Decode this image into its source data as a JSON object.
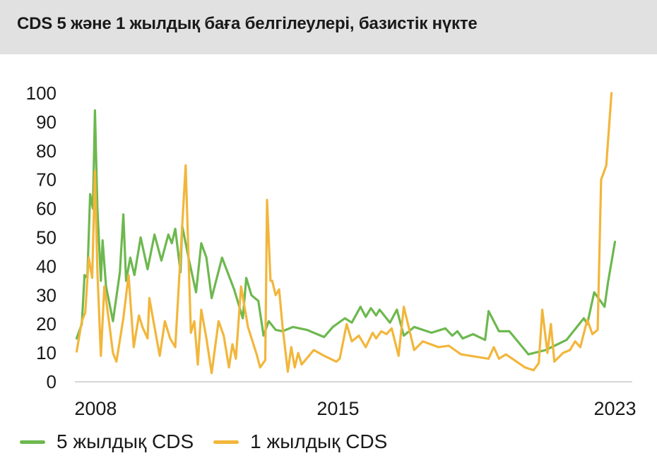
{
  "title": "CDS 5 және 1 жылдық баға белгілеулері, базистік нүкте",
  "colors": {
    "series_5y": "#6db84f",
    "series_1y": "#f2b63b",
    "header_bg": "#e1e1e1"
  },
  "legend": {
    "item_5y": "5 жылдық CDS",
    "item_1y": "1 жылдық CDS"
  },
  "chart_data": {
    "type": "line",
    "title": "CDS 5 және 1 жылдық баға белгілеулері, базистік нүкте",
    "xlabel": "",
    "ylabel": "",
    "ylim": [
      0,
      100
    ],
    "yticks": [
      0,
      10,
      20,
      30,
      40,
      50,
      60,
      70,
      80,
      90,
      100
    ],
    "xtick_labels": [
      {
        "label": "2008",
        "x": 2008
      },
      {
        "label": "2015",
        "x": 2015
      },
      {
        "label": "2023",
        "x": 2023
      }
    ],
    "xlim": [
      2007.4,
      2023.5
    ],
    "grid": false,
    "legend_position": "bottom",
    "series": [
      {
        "name": "5 жылдық CDS",
        "points": [
          [
            2007.45,
            15
          ],
          [
            2007.6,
            20
          ],
          [
            2007.68,
            37
          ],
          [
            2007.76,
            36
          ],
          [
            2007.84,
            65
          ],
          [
            2007.92,
            60
          ],
          [
            2007.98,
            94
          ],
          [
            2008.05,
            60
          ],
          [
            2008.15,
            35
          ],
          [
            2008.2,
            49
          ],
          [
            2008.3,
            33
          ],
          [
            2008.5,
            21
          ],
          [
            2008.7,
            38
          ],
          [
            2008.8,
            58
          ],
          [
            2008.88,
            35
          ],
          [
            2009.0,
            43
          ],
          [
            2009.12,
            37
          ],
          [
            2009.3,
            50
          ],
          [
            2009.5,
            39
          ],
          [
            2009.7,
            51
          ],
          [
            2009.9,
            42
          ],
          [
            2010.1,
            51
          ],
          [
            2010.2,
            48
          ],
          [
            2010.3,
            53
          ],
          [
            2010.45,
            38
          ],
          [
            2010.5,
            54
          ],
          [
            2010.7,
            42
          ],
          [
            2010.9,
            31
          ],
          [
            2011.05,
            48
          ],
          [
            2011.2,
            43
          ],
          [
            2011.35,
            29
          ],
          [
            2011.65,
            43
          ],
          [
            2012.0,
            32
          ],
          [
            2012.25,
            22
          ],
          [
            2012.35,
            36
          ],
          [
            2012.5,
            30
          ],
          [
            2012.7,
            28
          ],
          [
            2012.85,
            16
          ],
          [
            2013.0,
            21
          ],
          [
            2013.2,
            18
          ],
          [
            2013.4,
            17.5
          ],
          [
            2013.7,
            19
          ],
          [
            2014.1,
            18
          ],
          [
            2014.6,
            15.5
          ],
          [
            2014.85,
            19
          ],
          [
            2015.2,
            22
          ],
          [
            2015.4,
            20.5
          ],
          [
            2015.65,
            26
          ],
          [
            2015.8,
            22.5
          ],
          [
            2015.95,
            25.5
          ],
          [
            2016.1,
            23
          ],
          [
            2016.2,
            25
          ],
          [
            2016.5,
            20.5
          ],
          [
            2016.7,
            25
          ],
          [
            2016.9,
            16
          ],
          [
            2017.2,
            19
          ],
          [
            2017.7,
            17
          ],
          [
            2018.1,
            18.5
          ],
          [
            2018.3,
            16
          ],
          [
            2018.45,
            17.5
          ],
          [
            2018.6,
            15
          ],
          [
            2018.9,
            16.5
          ],
          [
            2019.25,
            14.5
          ],
          [
            2019.35,
            24.5
          ],
          [
            2019.65,
            17.5
          ],
          [
            2019.95,
            17.5
          ],
          [
            2020.5,
            9.5
          ],
          [
            2021.0,
            11
          ],
          [
            2021.6,
            14.5
          ],
          [
            2022.1,
            22
          ],
          [
            2022.2,
            20
          ],
          [
            2022.4,
            31
          ],
          [
            2022.7,
            26
          ],
          [
            2022.8,
            34.5
          ],
          [
            2023.0,
            48.5
          ]
        ]
      },
      {
        "name": "1 жылдық CDS",
        "points": [
          [
            2007.45,
            10.5
          ],
          [
            2007.6,
            21
          ],
          [
            2007.7,
            24
          ],
          [
            2007.8,
            43
          ],
          [
            2007.9,
            36
          ],
          [
            2007.98,
            73
          ],
          [
            2008.05,
            38
          ],
          [
            2008.15,
            9
          ],
          [
            2008.25,
            33
          ],
          [
            2008.35,
            24
          ],
          [
            2008.5,
            10
          ],
          [
            2008.6,
            7
          ],
          [
            2008.8,
            22
          ],
          [
            2008.95,
            37
          ],
          [
            2009.1,
            12
          ],
          [
            2009.25,
            23
          ],
          [
            2009.35,
            19
          ],
          [
            2009.5,
            15
          ],
          [
            2009.55,
            29
          ],
          [
            2009.7,
            19
          ],
          [
            2009.85,
            9
          ],
          [
            2010.0,
            21
          ],
          [
            2010.15,
            15
          ],
          [
            2010.3,
            12
          ],
          [
            2010.6,
            75
          ],
          [
            2010.75,
            17
          ],
          [
            2010.85,
            21
          ],
          [
            2010.95,
            6
          ],
          [
            2011.05,
            25
          ],
          [
            2011.2,
            15
          ],
          [
            2011.35,
            3
          ],
          [
            2011.55,
            21
          ],
          [
            2011.7,
            16
          ],
          [
            2011.85,
            5
          ],
          [
            2011.95,
            13
          ],
          [
            2012.05,
            8
          ],
          [
            2012.2,
            33
          ],
          [
            2012.4,
            19
          ],
          [
            2012.65,
            9.5
          ],
          [
            2012.75,
            5
          ],
          [
            2012.9,
            7.5
          ],
          [
            2012.95,
            63
          ],
          [
            2013.05,
            35
          ],
          [
            2013.1,
            35
          ],
          [
            2013.2,
            30
          ],
          [
            2013.3,
            32
          ],
          [
            2013.4,
            19
          ],
          [
            2013.55,
            3.5
          ],
          [
            2013.65,
            12
          ],
          [
            2013.75,
            5
          ],
          [
            2013.85,
            10
          ],
          [
            2013.95,
            6
          ],
          [
            2014.3,
            11
          ],
          [
            2014.6,
            9
          ],
          [
            2014.95,
            7
          ],
          [
            2015.05,
            8
          ],
          [
            2015.25,
            20
          ],
          [
            2015.4,
            14
          ],
          [
            2015.6,
            16
          ],
          [
            2015.8,
            12
          ],
          [
            2016.0,
            17
          ],
          [
            2016.1,
            15
          ],
          [
            2016.25,
            17.5
          ],
          [
            2016.4,
            16.5
          ],
          [
            2016.55,
            18.5
          ],
          [
            2016.75,
            9
          ],
          [
            2016.9,
            26
          ],
          [
            2017.2,
            11
          ],
          [
            2017.45,
            14
          ],
          [
            2017.9,
            12
          ],
          [
            2018.2,
            12.5
          ],
          [
            2018.55,
            9.5
          ],
          [
            2019.35,
            8
          ],
          [
            2019.5,
            12
          ],
          [
            2019.65,
            8
          ],
          [
            2019.85,
            9.5
          ],
          [
            2020.4,
            5
          ],
          [
            2020.65,
            4
          ],
          [
            2020.8,
            6.5
          ],
          [
            2020.9,
            25
          ],
          [
            2021.05,
            10
          ],
          [
            2021.15,
            20
          ],
          [
            2021.25,
            7
          ],
          [
            2021.5,
            10
          ],
          [
            2021.7,
            11
          ],
          [
            2021.85,
            14
          ],
          [
            2022.0,
            12
          ],
          [
            2022.2,
            21.5
          ],
          [
            2022.35,
            16.5
          ],
          [
            2022.5,
            18
          ],
          [
            2022.6,
            70
          ],
          [
            2022.75,
            75
          ],
          [
            2022.9,
            100
          ]
        ]
      }
    ]
  }
}
